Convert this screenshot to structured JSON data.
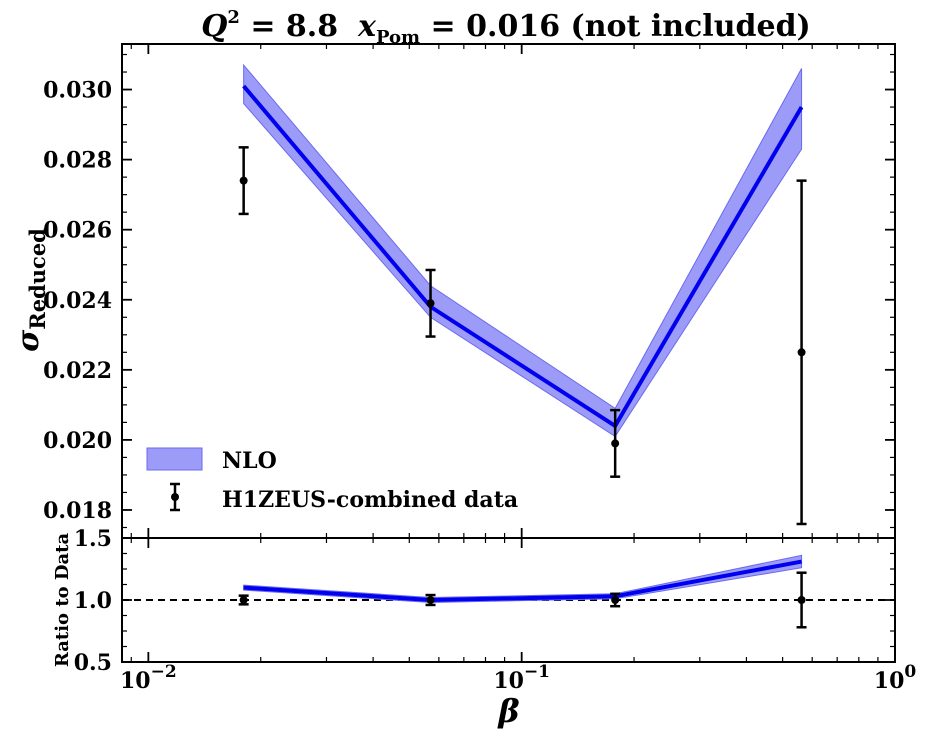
{
  "chart_data": {
    "type": "line",
    "title_parts": {
      "q_symbol": "Q",
      "q_exp": "2",
      "q_value": " = 8.8",
      "x_symbol": "x",
      "x_sub": "Pom",
      "x_value": " = 0.016 (not included)"
    },
    "xlabel": "β",
    "ylabel_main": "σ",
    "ylabel_sub": "Reduced",
    "ylabel_ratio": "Ratio to Data",
    "x_scale": "log",
    "xlim": [
      0.0085,
      1.0
    ],
    "legend_placement": "lower-left",
    "panels": [
      {
        "name": "main",
        "ylim": [
          0.0172,
          0.0313
        ],
        "yticks": [
          {
            "value": 0.018,
            "label": "0.018"
          },
          {
            "value": 0.02,
            "label": "0.020"
          },
          {
            "value": 0.022,
            "label": "0.022"
          },
          {
            "value": 0.024,
            "label": "0.024"
          },
          {
            "value": 0.026,
            "label": "0.026"
          },
          {
            "value": 0.028,
            "label": "0.028"
          },
          {
            "value": 0.03,
            "label": "0.030"
          }
        ]
      },
      {
        "name": "ratio",
        "ylim": [
          0.5,
          1.5
        ],
        "yticks": [
          {
            "value": 0.5,
            "label": "0.5"
          },
          {
            "value": 1.0,
            "label": "1.0"
          },
          {
            "value": 1.5,
            "label": "1.5"
          }
        ],
        "reference_line": 1.0
      }
    ],
    "xticks": [
      {
        "value": 0.01,
        "base": "10",
        "exp": "−2"
      },
      {
        "value": 0.1,
        "base": "10",
        "exp": "−1"
      },
      {
        "value": 1.0,
        "base": "10",
        "exp": "0"
      }
    ],
    "series": [
      {
        "name": "NLO",
        "kind": "band_line",
        "color": "#0000ee",
        "band_color": "#7b7bf5",
        "x": [
          0.018,
          0.057,
          0.178,
          0.562
        ],
        "y": [
          0.0301,
          0.0238,
          0.0204,
          0.0295
        ],
        "y_low": [
          0.0296,
          0.0235,
          0.0201,
          0.0283
        ],
        "y_high": [
          0.0307,
          0.0244,
          0.0209,
          0.0306
        ],
        "ratio": [
          1.1,
          1.0,
          1.03,
          1.31
        ],
        "ratio_low": [
          1.08,
          0.98,
          1.01,
          1.26
        ],
        "ratio_high": [
          1.12,
          1.02,
          1.05,
          1.36
        ]
      },
      {
        "name": "H1ZEUS-combined data",
        "kind": "errorbar",
        "color": "#000000",
        "x": [
          0.018,
          0.057,
          0.178,
          0.562
        ],
        "y": [
          0.0274,
          0.0239,
          0.0199,
          0.0225
        ],
        "y_err": [
          0.00095,
          0.00095,
          0.00095,
          0.0049
        ],
        "ratio": [
          1.0,
          1.0,
          1.0,
          1.0
        ],
        "ratio_err": [
          0.035,
          0.04,
          0.05,
          0.22
        ]
      }
    ]
  }
}
